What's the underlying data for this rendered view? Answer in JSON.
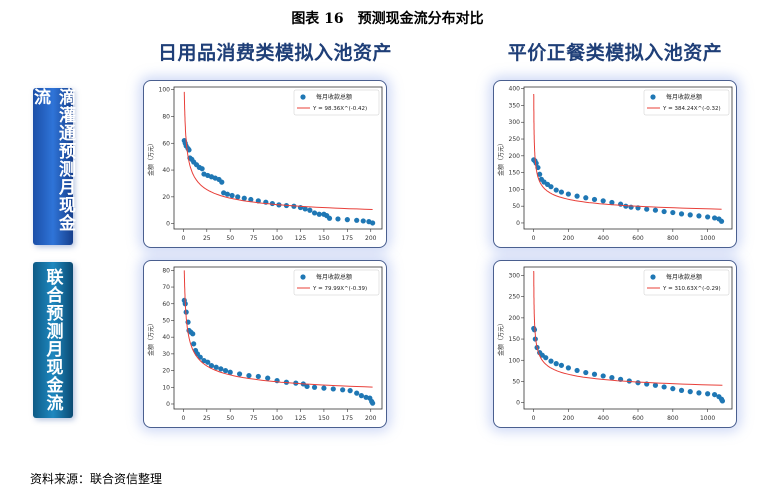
{
  "title": "图表 16　预测现金流分布对比",
  "columns": [
    "日用品消费类模拟入池资产",
    "平价正餐类模拟入池资产"
  ],
  "rows": [
    "滴灌通预测月现金流",
    "联合预测月现金流"
  ],
  "source": "资料来源：联合资信整理",
  "colors": {
    "scatter": "#1f77b4",
    "fit": "#e8403a",
    "header": "#1f3f78",
    "row_label": "#2f74d8"
  },
  "chart_data": [
    {
      "type": "scatter",
      "ylabel": "金额（万元）",
      "legend": [
        "每月收款总额",
        "Y = 98.36X^(-0.42)"
      ],
      "legend_position": "top-right",
      "fit": {
        "a": 98.36,
        "b": -0.42
      },
      "xlim": [
        -10,
        212
      ],
      "ylim": [
        -4,
        102
      ],
      "xticks": [
        0,
        25,
        50,
        75,
        100,
        125,
        150,
        175,
        200
      ],
      "yticks": [
        0,
        20,
        40,
        60,
        80,
        100
      ],
      "points": [
        [
          1,
          62
        ],
        [
          2,
          60
        ],
        [
          3,
          58
        ],
        [
          5,
          56
        ],
        [
          6,
          55
        ],
        [
          7,
          49
        ],
        [
          9,
          48
        ],
        [
          11,
          46
        ],
        [
          14,
          44
        ],
        [
          17,
          42
        ],
        [
          20,
          41
        ],
        [
          22,
          37
        ],
        [
          26,
          36
        ],
        [
          30,
          35
        ],
        [
          34,
          34
        ],
        [
          38,
          33
        ],
        [
          41,
          31
        ],
        [
          43,
          23
        ],
        [
          47,
          22
        ],
        [
          52,
          21
        ],
        [
          58,
          20
        ],
        [
          65,
          19
        ],
        [
          72,
          18
        ],
        [
          80,
          17
        ],
        [
          88,
          16
        ],
        [
          95,
          15
        ],
        [
          102,
          14
        ],
        [
          110,
          13.5
        ],
        [
          118,
          13
        ],
        [
          125,
          12
        ],
        [
          130,
          11
        ],
        [
          135,
          10
        ],
        [
          140,
          8
        ],
        [
          145,
          7
        ],
        [
          150,
          7
        ],
        [
          153,
          6
        ],
        [
          156,
          4
        ],
        [
          165,
          3.5
        ],
        [
          175,
          3
        ],
        [
          185,
          2.5
        ],
        [
          192,
          2
        ],
        [
          198,
          1.5
        ],
        [
          202,
          0.5
        ]
      ]
    },
    {
      "type": "scatter",
      "ylabel": "金额（万元）",
      "legend": [
        "每月收款总额",
        "Y = 384.24X^(-0.32)"
      ],
      "legend_position": "top-right",
      "fit": {
        "a": 384.24,
        "b": -0.32
      },
      "xlim": [
        -55,
        1140
      ],
      "ylim": [
        -18,
        405
      ],
      "xticks": [
        0,
        200,
        400,
        600,
        800,
        1000
      ],
      "yticks": [
        0,
        50,
        100,
        150,
        200,
        250,
        300,
        350,
        400
      ],
      "points": [
        [
          1,
          188
        ],
        [
          8,
          185
        ],
        [
          15,
          178
        ],
        [
          25,
          165
        ],
        [
          35,
          145
        ],
        [
          45,
          130
        ],
        [
          60,
          122
        ],
        [
          80,
          115
        ],
        [
          100,
          108
        ],
        [
          130,
          98
        ],
        [
          160,
          92
        ],
        [
          200,
          86
        ],
        [
          250,
          80
        ],
        [
          300,
          75
        ],
        [
          350,
          70
        ],
        [
          400,
          66
        ],
        [
          450,
          61
        ],
        [
          500,
          56
        ],
        [
          530,
          50
        ],
        [
          560,
          47
        ],
        [
          600,
          45
        ],
        [
          650,
          41
        ],
        [
          700,
          38
        ],
        [
          750,
          34
        ],
        [
          800,
          31
        ],
        [
          850,
          27
        ],
        [
          900,
          24
        ],
        [
          950,
          21
        ],
        [
          1000,
          18
        ],
        [
          1040,
          15
        ],
        [
          1065,
          12
        ],
        [
          1080,
          5
        ]
      ]
    },
    {
      "type": "scatter",
      "ylabel": "金额（万元）",
      "legend": [
        "每月收款总额",
        "Y = 79.99X^(-0.39)"
      ],
      "legend_position": "top-right",
      "fit": {
        "a": 79.99,
        "b": -0.39
      },
      "xlim": [
        -10,
        212
      ],
      "ylim": [
        -3,
        82
      ],
      "xticks": [
        0,
        25,
        50,
        75,
        100,
        125,
        150,
        175,
        200
      ],
      "yticks": [
        0,
        10,
        20,
        30,
        40,
        50,
        60,
        70,
        80
      ],
      "points": [
        [
          1,
          62
        ],
        [
          2,
          60
        ],
        [
          3,
          55
        ],
        [
          5,
          49
        ],
        [
          6,
          44
        ],
        [
          8,
          43
        ],
        [
          10,
          42
        ],
        [
          11,
          36
        ],
        [
          13,
          32
        ],
        [
          15,
          30
        ],
        [
          18,
          28
        ],
        [
          22,
          26
        ],
        [
          26,
          25
        ],
        [
          30,
          23
        ],
        [
          35,
          22
        ],
        [
          40,
          21
        ],
        [
          45,
          20
        ],
        [
          50,
          19
        ],
        [
          60,
          18
        ],
        [
          70,
          17
        ],
        [
          80,
          16.5
        ],
        [
          90,
          15.5
        ],
        [
          100,
          14
        ],
        [
          110,
          13
        ],
        [
          120,
          12.5
        ],
        [
          128,
          12
        ],
        [
          132,
          10.5
        ],
        [
          140,
          10
        ],
        [
          150,
          9.5
        ],
        [
          160,
          9
        ],
        [
          170,
          8.5
        ],
        [
          178,
          8
        ],
        [
          185,
          6.5
        ],
        [
          190,
          5
        ],
        [
          195,
          4
        ],
        [
          199,
          3.5
        ],
        [
          201,
          1.5
        ],
        [
          202,
          0.5
        ]
      ]
    },
    {
      "type": "scatter",
      "ylabel": "金额（万元）",
      "legend": [
        "每月收款总额",
        "Y = 310.63X^(-0.29)"
      ],
      "legend_position": "top-right",
      "fit": {
        "a": 310.63,
        "b": -0.29
      },
      "xlim": [
        -55,
        1140
      ],
      "ylim": [
        -15,
        320
      ],
      "xticks": [
        0,
        200,
        400,
        600,
        800,
        1000
      ],
      "yticks": [
        0,
        50,
        100,
        150,
        200,
        250,
        300
      ],
      "points": [
        [
          1,
          175
        ],
        [
          5,
          172
        ],
        [
          10,
          150
        ],
        [
          20,
          130
        ],
        [
          35,
          118
        ],
        [
          50,
          112
        ],
        [
          70,
          106
        ],
        [
          100,
          98
        ],
        [
          130,
          92
        ],
        [
          160,
          88
        ],
        [
          200,
          82
        ],
        [
          250,
          76
        ],
        [
          300,
          71
        ],
        [
          350,
          67
        ],
        [
          400,
          63
        ],
        [
          450,
          59
        ],
        [
          500,
          55
        ],
        [
          550,
          51
        ],
        [
          600,
          47
        ],
        [
          650,
          44
        ],
        [
          700,
          41
        ],
        [
          750,
          37
        ],
        [
          800,
          33
        ],
        [
          850,
          29
        ],
        [
          900,
          26
        ],
        [
          950,
          23
        ],
        [
          1000,
          21
        ],
        [
          1040,
          19
        ],
        [
          1065,
          14
        ],
        [
          1080,
          8
        ],
        [
          1085,
          4
        ]
      ]
    }
  ]
}
